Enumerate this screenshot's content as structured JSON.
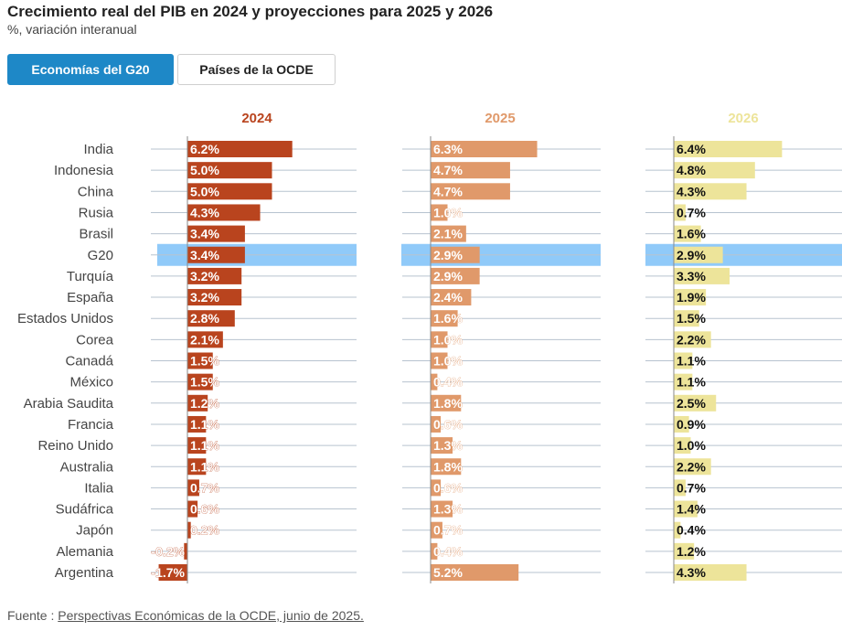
{
  "header": {
    "title": "Crecimiento real del PIB en 2024 y proyecciones para 2025 y 2026",
    "subtitle": "%, variación interanual"
  },
  "tabs": [
    {
      "label": "Economías del G20",
      "active": true
    },
    {
      "label": "Países de la OCDE",
      "active": false
    }
  ],
  "chart_data": {
    "type": "bar",
    "orientation": "horizontal",
    "categories": [
      "India",
      "Indonesia",
      "China",
      "Rusia",
      "Brasil",
      "G20",
      "Turquía",
      "España",
      "Estados Unidos",
      "Corea",
      "Canadá",
      "México",
      "Arabia Saudita",
      "Francia",
      "Reino Unido",
      "Australia",
      "Italia",
      "Sudáfrica",
      "Japón",
      "Alemania",
      "Argentina"
    ],
    "highlight_category": "G20",
    "highlight_color": "#90caf9",
    "series": [
      {
        "name": "2024",
        "color": "#b9441e",
        "label_color": "#ffffff",
        "values": [
          6.2,
          5.0,
          5.0,
          4.3,
          3.4,
          3.4,
          3.2,
          3.2,
          2.8,
          2.1,
          1.5,
          1.5,
          1.2,
          1.1,
          1.1,
          1.1,
          0.7,
          0.6,
          0.2,
          -0.2,
          -1.7
        ]
      },
      {
        "name": "2025",
        "color": "#e0996a",
        "label_color": "#ffffff",
        "values": [
          6.3,
          4.7,
          4.7,
          1.0,
          2.1,
          2.9,
          2.9,
          2.4,
          1.6,
          1.0,
          1.0,
          0.4,
          1.8,
          0.6,
          1.3,
          1.8,
          0.6,
          1.3,
          0.7,
          0.4,
          5.2
        ]
      },
      {
        "name": "2026",
        "color": "#ede49a",
        "label_color": "#111111",
        "values": [
          6.4,
          4.8,
          4.3,
          0.7,
          1.6,
          2.9,
          3.3,
          1.9,
          1.5,
          2.2,
          1.1,
          1.1,
          2.5,
          0.9,
          1.0,
          2.2,
          0.7,
          1.4,
          0.4,
          1.2,
          4.3
        ]
      }
    ],
    "value_suffix": "%"
  },
  "source": {
    "prefix": "Fuente : ",
    "link_text": "Perspectivas Económicas de la OCDE, junio de 2025."
  }
}
